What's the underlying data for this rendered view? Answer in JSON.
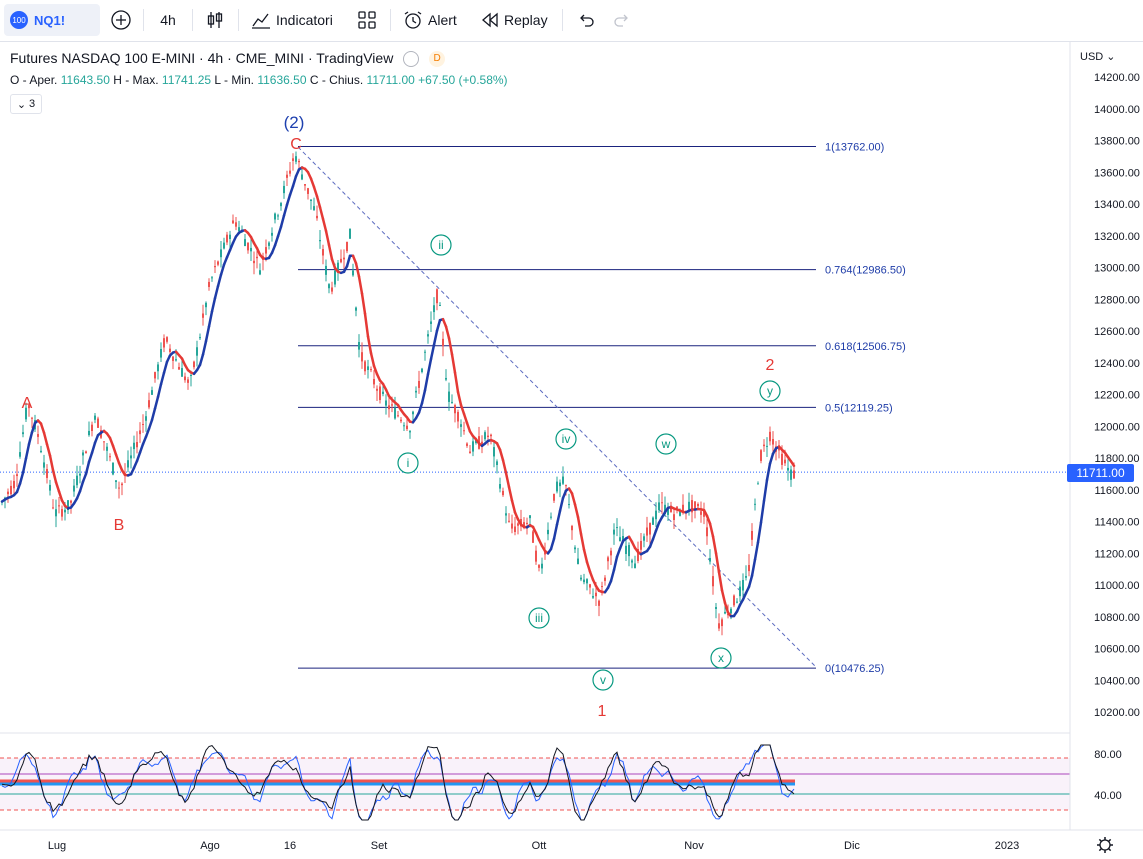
{
  "toolbar": {
    "symbol_badge": "100",
    "symbol": "NQ1!",
    "add_icon": "plus-circle-icon",
    "interval": "4h",
    "bar_type_icon": "candles-icon",
    "indicators_label": "Indicatori",
    "templates_icon": "grid-icon",
    "alert_label": "Alert",
    "replay_label": "Replay",
    "undo_icon": "undo-icon",
    "redo_icon": "redo-icon"
  },
  "legend": {
    "title": "Futures NASDAQ 100 E-MINI · 4h · CME_MINI · TradingView",
    "badge": "D",
    "ohlc_o_label": "O - Aper.",
    "ohlc_o": "11643.50",
    "ohlc_h_label": "H - Max.",
    "ohlc_h": "11741.25",
    "ohlc_l_label": "L - Min.",
    "ohlc_l": "11636.50",
    "ohlc_c_label": "C - Chius.",
    "ohlc_c": "11711.00",
    "change": "+67.50 (+0.58%)",
    "indicators_count": "3"
  },
  "price_axis": {
    "currency": "USD",
    "labels": [
      "14200.00",
      "14000.00",
      "13800.00",
      "13600.00",
      "13400.00",
      "13200.00",
      "13000.00",
      "12800.00",
      "12600.00",
      "12400.00",
      "12200.00",
      "12000.00",
      "11800.00",
      "11600.00",
      "11400.00",
      "11200.00",
      "11000.00",
      "10800.00",
      "10600.00",
      "10400.00",
      "10200.00"
    ],
    "last_price": "11711.00"
  },
  "osc_axis": {
    "labels": [
      "80.00",
      "40.00"
    ]
  },
  "time_axis": {
    "labels": [
      "Lug",
      "Ago",
      "16",
      "Set",
      "Ott",
      "Nov",
      "Dic",
      "2023"
    ]
  },
  "fib_levels": [
    {
      "label": "1(13762.00)",
      "value": 13762.0
    },
    {
      "label": "0.764(12986.50)",
      "value": 12986.5
    },
    {
      "label": "0.618(12506.75)",
      "value": 12506.75
    },
    {
      "label": "0.5(12119.25)",
      "value": 12119.25
    },
    {
      "label": "0(10476.25)",
      "value": 10476.25
    }
  ],
  "wave_labels": {
    "w2_major": "(2)",
    "a": "A",
    "b": "B",
    "c": "C",
    "i": "i",
    "ii": "ii",
    "iii": "iii",
    "iv": "iv",
    "v": "v",
    "w": "w",
    "x": "x",
    "y": "y",
    "one": "1",
    "two": "2"
  },
  "colors": {
    "up": "#26a69a",
    "down": "#ef5350",
    "ma_up": "#1e3ca8",
    "ma_down": "#e53935",
    "fib": "#1a237e",
    "wave_green": "#089981",
    "wave_red": "#e53935",
    "wave_blue": "#1e40af",
    "accent": "#2962ff"
  },
  "chart_data": {
    "type": "candlestick",
    "price_range": [
      10100,
      14250
    ],
    "oscillator_levels": [
      80,
      40
    ]
  }
}
